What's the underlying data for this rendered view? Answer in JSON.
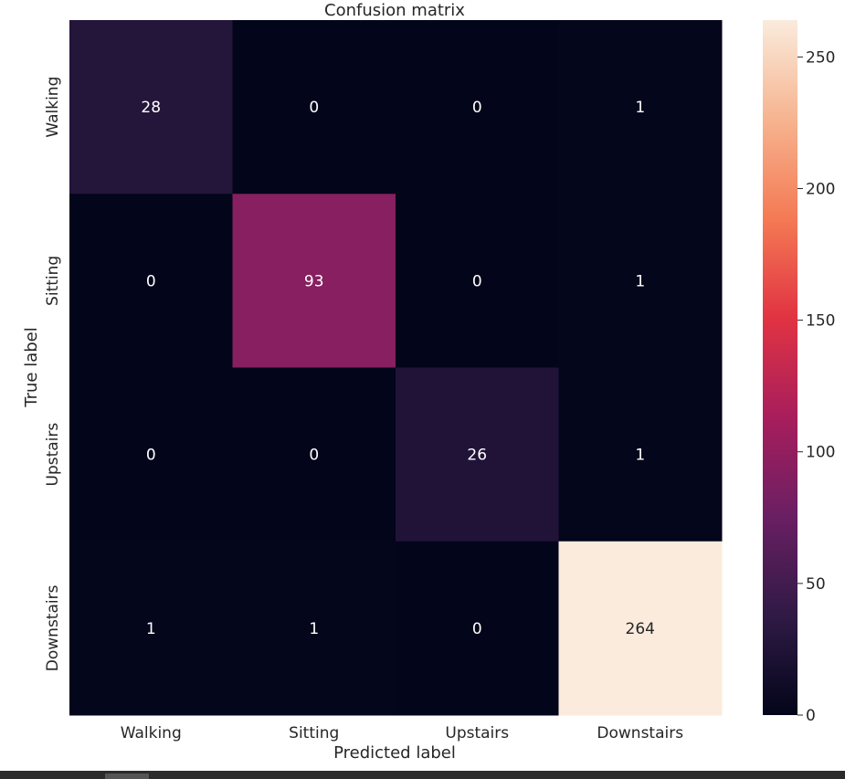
{
  "chart_data": {
    "type": "heatmap",
    "title": "Confusion matrix",
    "xlabel": "Predicted label",
    "ylabel": "True label",
    "x_categories": [
      "Walking",
      "Sitting",
      "Upstairs",
      "Downstairs"
    ],
    "y_categories": [
      "Walking",
      "Sitting",
      "Upstairs",
      "Downstairs"
    ],
    "values": [
      [
        28,
        0,
        0,
        1
      ],
      [
        0,
        93,
        0,
        1
      ],
      [
        0,
        0,
        26,
        1
      ],
      [
        1,
        1,
        0,
        264
      ]
    ],
    "colorbar": {
      "min": 0,
      "max": 264,
      "ticks": [
        0,
        50,
        100,
        150,
        200,
        250
      ]
    },
    "colormap": [
      "#03051a",
      "#2f1a45",
      "#6a1f63",
      "#a81e5c",
      "#e13342",
      "#f47a54",
      "#f6b48f",
      "#faebdd"
    ],
    "text_light": "#ffffff",
    "text_dark": "#262626"
  }
}
